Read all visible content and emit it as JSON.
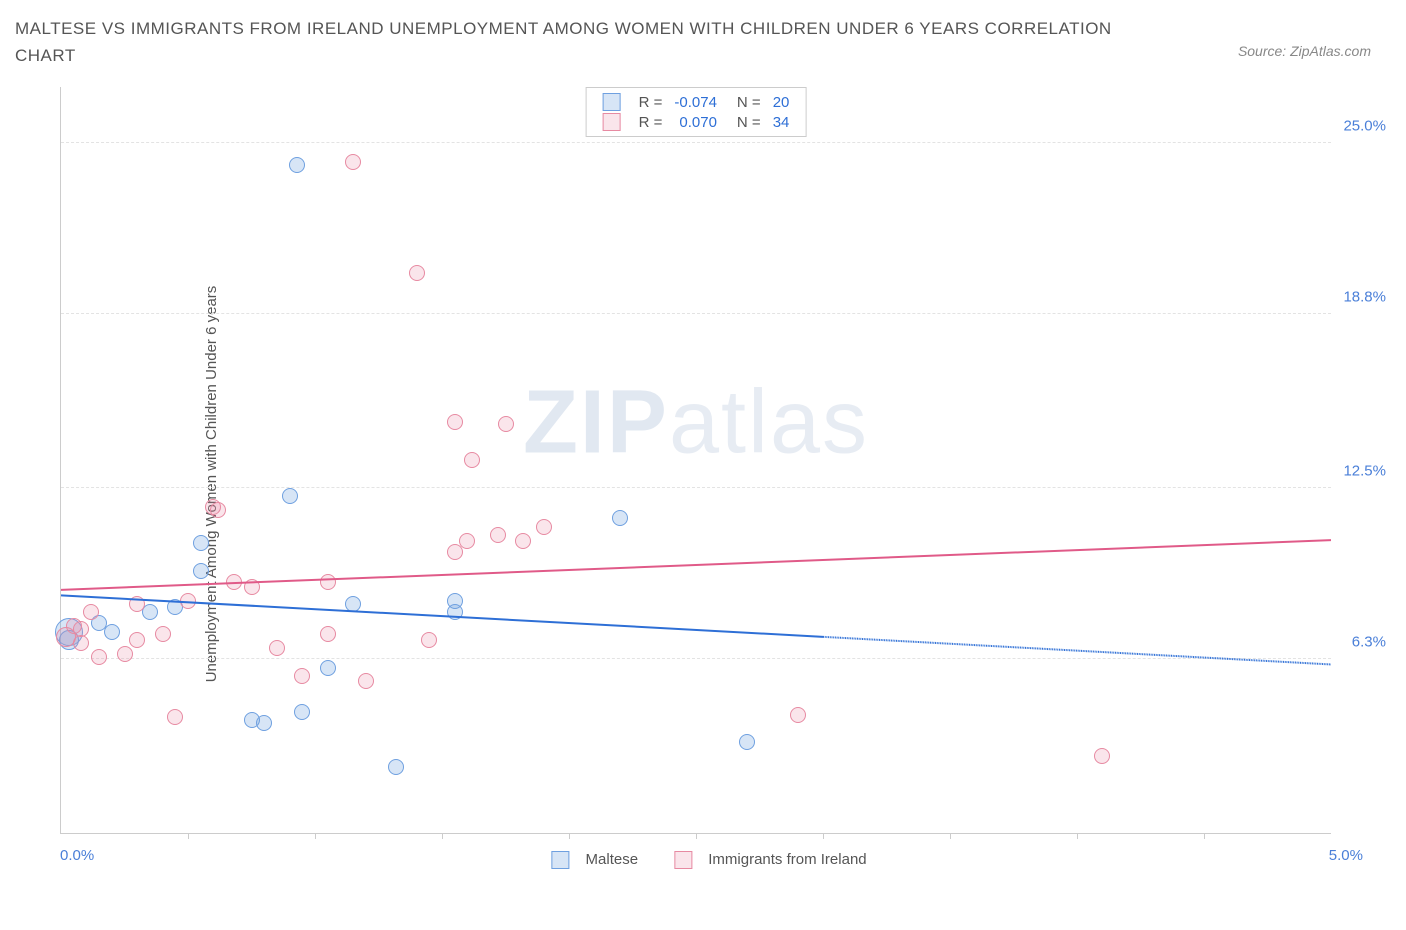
{
  "title": "MALTESE VS IMMIGRANTS FROM IRELAND UNEMPLOYMENT AMONG WOMEN WITH CHILDREN UNDER 6 YEARS CORRELATION CHART",
  "source_label": "Source: ZipAtlas.com",
  "ylabel": "Unemployment Among Women with Children Under 6 years",
  "watermark_bold": "ZIP",
  "watermark_light": "atlas",
  "chart": {
    "type": "scatter",
    "xlim": [
      0,
      5
    ],
    "ylim": [
      0,
      27
    ],
    "x_ticks_minor": [
      0.5,
      1.0,
      1.5,
      2.0,
      2.5,
      3.0,
      3.5,
      4.0,
      4.5
    ],
    "x_tick_labels": [
      {
        "value": 0.0,
        "label": "0.0%"
      },
      {
        "value": 5.0,
        "label": "5.0%"
      }
    ],
    "y_grid": [
      6.3,
      12.5,
      18.8,
      25.0
    ],
    "y_tick_labels": [
      {
        "value": 6.3,
        "label": "6.3%"
      },
      {
        "value": 12.5,
        "label": "12.5%"
      },
      {
        "value": 18.8,
        "label": "18.8%"
      },
      {
        "value": 25.0,
        "label": "25.0%"
      }
    ],
    "series": [
      {
        "key": "maltese",
        "name": "Maltese",
        "color_stroke": "#6fa0e0",
        "color_fill": "rgba(111,160,224,0.28)",
        "line_color": "#2e6fd6",
        "R": "-0.074",
        "N": "20",
        "trend": {
          "x1": 0.0,
          "y1": 8.6,
          "x2_solid": 3.0,
          "y2_solid": 7.1,
          "x2_dash": 5.0,
          "y2_dash": 6.1
        },
        "points": [
          {
            "x": 0.03,
            "y": 7.3,
            "r": 14
          },
          {
            "x": 0.03,
            "y": 7.0,
            "r": 10
          },
          {
            "x": 0.15,
            "y": 7.6,
            "r": 8
          },
          {
            "x": 0.2,
            "y": 7.3,
            "r": 8
          },
          {
            "x": 0.35,
            "y": 8.0,
            "r": 8
          },
          {
            "x": 0.45,
            "y": 8.2,
            "r": 8
          },
          {
            "x": 0.55,
            "y": 9.5,
            "r": 8
          },
          {
            "x": 0.55,
            "y": 10.5,
            "r": 8
          },
          {
            "x": 0.75,
            "y": 4.1,
            "r": 8
          },
          {
            "x": 0.8,
            "y": 4.0,
            "r": 8
          },
          {
            "x": 0.9,
            "y": 12.2,
            "r": 8
          },
          {
            "x": 0.93,
            "y": 24.2,
            "r": 8
          },
          {
            "x": 0.95,
            "y": 4.4,
            "r": 8
          },
          {
            "x": 1.05,
            "y": 6.0,
            "r": 8
          },
          {
            "x": 1.15,
            "y": 8.3,
            "r": 8
          },
          {
            "x": 1.32,
            "y": 2.4,
            "r": 8
          },
          {
            "x": 1.55,
            "y": 8.4,
            "r": 8
          },
          {
            "x": 2.2,
            "y": 11.4,
            "r": 8
          },
          {
            "x": 2.7,
            "y": 3.3,
            "r": 8
          },
          {
            "x": 1.55,
            "y": 8.0,
            "r": 8
          }
        ]
      },
      {
        "key": "ireland",
        "name": "Immigrants from Ireland",
        "color_stroke": "#e78aa2",
        "color_fill": "rgba(231,138,162,0.22)",
        "line_color": "#e05a88",
        "R": "0.070",
        "N": "34",
        "trend": {
          "x1": 0.0,
          "y1": 8.8,
          "x2_solid": 5.0,
          "y2_solid": 10.6,
          "x2_dash": 5.0,
          "y2_dash": 10.6
        },
        "points": [
          {
            "x": 0.02,
            "y": 7.1,
            "r": 10
          },
          {
            "x": 0.05,
            "y": 7.5,
            "r": 8
          },
          {
            "x": 0.08,
            "y": 6.9,
            "r": 8
          },
          {
            "x": 0.08,
            "y": 7.4,
            "r": 8
          },
          {
            "x": 0.12,
            "y": 8.0,
            "r": 8
          },
          {
            "x": 0.15,
            "y": 6.4,
            "r": 8
          },
          {
            "x": 0.25,
            "y": 6.5,
            "r": 8
          },
          {
            "x": 0.3,
            "y": 7.0,
            "r": 8
          },
          {
            "x": 0.3,
            "y": 8.3,
            "r": 8
          },
          {
            "x": 0.4,
            "y": 7.2,
            "r": 8
          },
          {
            "x": 0.45,
            "y": 4.2,
            "r": 8
          },
          {
            "x": 0.5,
            "y": 8.4,
            "r": 8
          },
          {
            "x": 0.62,
            "y": 11.7,
            "r": 8
          },
          {
            "x": 0.68,
            "y": 9.1,
            "r": 8
          },
          {
            "x": 0.75,
            "y": 8.9,
            "r": 8
          },
          {
            "x": 0.85,
            "y": 6.7,
            "r": 8
          },
          {
            "x": 0.95,
            "y": 5.7,
            "r": 8
          },
          {
            "x": 1.05,
            "y": 7.2,
            "r": 8
          },
          {
            "x": 1.05,
            "y": 9.1,
            "r": 8
          },
          {
            "x": 1.15,
            "y": 24.3,
            "r": 8
          },
          {
            "x": 1.2,
            "y": 5.5,
            "r": 8
          },
          {
            "x": 1.4,
            "y": 20.3,
            "r": 8
          },
          {
            "x": 1.45,
            "y": 7.0,
            "r": 8
          },
          {
            "x": 1.55,
            "y": 14.9,
            "r": 8
          },
          {
            "x": 1.55,
            "y": 10.2,
            "r": 8
          },
          {
            "x": 1.6,
            "y": 10.6,
            "r": 8
          },
          {
            "x": 1.62,
            "y": 13.5,
            "r": 8
          },
          {
            "x": 1.72,
            "y": 10.8,
            "r": 8
          },
          {
            "x": 1.75,
            "y": 14.8,
            "r": 8
          },
          {
            "x": 1.82,
            "y": 10.6,
            "r": 8
          },
          {
            "x": 1.9,
            "y": 11.1,
            "r": 8
          },
          {
            "x": 2.9,
            "y": 4.3,
            "r": 8
          },
          {
            "x": 4.1,
            "y": 2.8,
            "r": 8
          },
          {
            "x": 0.6,
            "y": 11.8,
            "r": 8
          }
        ]
      }
    ]
  },
  "legend_top_labels": {
    "r_prefix": "R =",
    "n_prefix": "N ="
  },
  "legend_bottom": [
    "Maltese",
    "Immigrants from Ireland"
  ]
}
